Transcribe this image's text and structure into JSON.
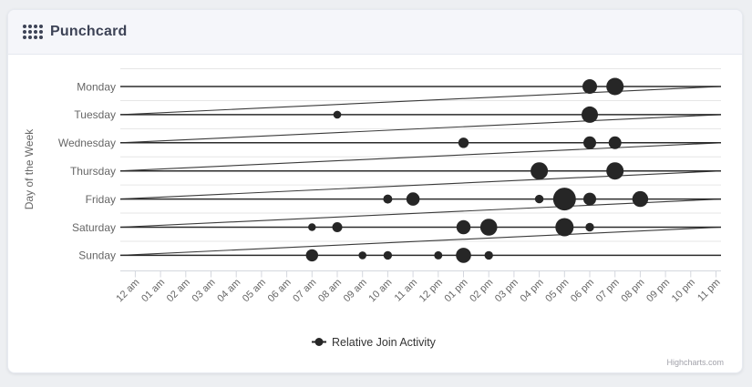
{
  "header": {
    "title": "Punchcard"
  },
  "credits": {
    "label": "Highcharts.com"
  },
  "legend": {
    "label": "Relative Join Activity",
    "position": "bottom-center"
  },
  "colors": {
    "series": "#262626",
    "row_line": "#2b2b2b",
    "connector_line": "#3a3a3a",
    "grid_line": "#e6e6e6",
    "axis_line": "#d4d7de",
    "tick": "#d4d7de",
    "axis_label": "#666666",
    "axis_title": "#666666",
    "legend_text": "#333333",
    "credits_text": "#a2a2aa",
    "header_title": "#3d4356",
    "header_bg": "#f5f6fa",
    "card_bg": "#ffffff",
    "page_bg": "#edeff2"
  },
  "chart_data": {
    "type": "scatter",
    "title": "",
    "ylabel": "Day of the Week",
    "xlabel": "",
    "grid": "horizontal-only",
    "legend_position": "bottom-center",
    "x_categories": [
      "12 am",
      "01 am",
      "02 am",
      "03 am",
      "04 am",
      "05 am",
      "06 am",
      "07 am",
      "08 am",
      "09 am",
      "10 am",
      "11 am",
      "12 pm",
      "01 pm",
      "02 pm",
      "03 pm",
      "04 pm",
      "05 pm",
      "06 pm",
      "07 pm",
      "08 pm",
      "09 pm",
      "10 pm",
      "11 pm"
    ],
    "y_categories": [
      "Monday",
      "Tuesday",
      "Wednesday",
      "Thursday",
      "Friday",
      "Saturday",
      "Sunday"
    ],
    "series": [
      {
        "name": "Relative Join Activity",
        "marker_color": "#262626",
        "points": [
          {
            "day": "Monday",
            "hour": "06 pm",
            "size": 8
          },
          {
            "day": "Monday",
            "hour": "07 pm",
            "size": 9.5
          },
          {
            "day": "Tuesday",
            "hour": "08 am",
            "size": 4.3
          },
          {
            "day": "Tuesday",
            "hour": "06 pm",
            "size": 9
          },
          {
            "day": "Wednesday",
            "hour": "01 pm",
            "size": 5.7
          },
          {
            "day": "Wednesday",
            "hour": "06 pm",
            "size": 7
          },
          {
            "day": "Wednesday",
            "hour": "07 pm",
            "size": 7
          },
          {
            "day": "Thursday",
            "hour": "04 pm",
            "size": 9.5
          },
          {
            "day": "Thursday",
            "hour": "07 pm",
            "size": 9.5
          },
          {
            "day": "Friday",
            "hour": "10 am",
            "size": 5
          },
          {
            "day": "Friday",
            "hour": "11 am",
            "size": 7.3
          },
          {
            "day": "Friday",
            "hour": "04 pm",
            "size": 4.7
          },
          {
            "day": "Friday",
            "hour": "05 pm",
            "size": 12.5
          },
          {
            "day": "Friday",
            "hour": "06 pm",
            "size": 7
          },
          {
            "day": "Friday",
            "hour": "08 pm",
            "size": 8.7
          },
          {
            "day": "Saturday",
            "hour": "07 am",
            "size": 4.2
          },
          {
            "day": "Saturday",
            "hour": "08 am",
            "size": 5.5
          },
          {
            "day": "Saturday",
            "hour": "01 pm",
            "size": 7.7
          },
          {
            "day": "Saturday",
            "hour": "02 pm",
            "size": 9.3
          },
          {
            "day": "Saturday",
            "hour": "05 pm",
            "size": 10
          },
          {
            "day": "Saturday",
            "hour": "06 pm",
            "size": 4.7
          },
          {
            "day": "Sunday",
            "hour": "07 am",
            "size": 6.7
          },
          {
            "day": "Sunday",
            "hour": "09 am",
            "size": 4.3
          },
          {
            "day": "Sunday",
            "hour": "10 am",
            "size": 4.7
          },
          {
            "day": "Sunday",
            "hour": "12 pm",
            "size": 4.5
          },
          {
            "day": "Sunday",
            "hour": "01 pm",
            "size": 8.3
          },
          {
            "day": "Sunday",
            "hour": "02 pm",
            "size": 4.7
          }
        ]
      }
    ]
  }
}
